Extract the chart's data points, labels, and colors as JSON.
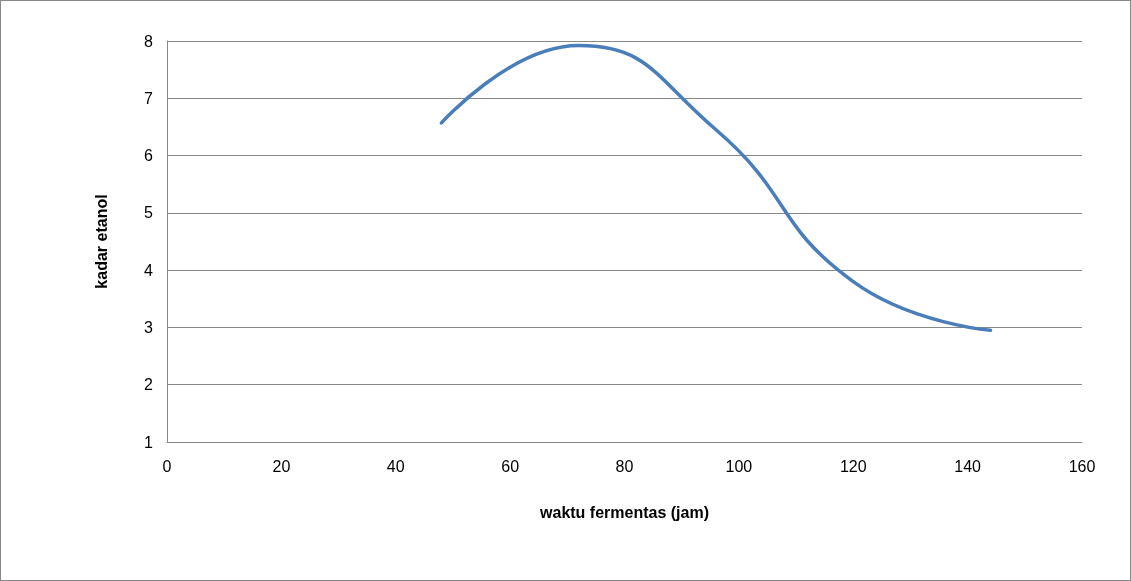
{
  "chart_data": {
    "type": "line",
    "xlabel": "waktu fermentas (jam)",
    "ylabel": "kadar etanol",
    "x": [
      48,
      72,
      96,
      120,
      144
    ],
    "series": [
      {
        "color": "#4a7ebb",
        "values": [
          6.57,
          7.92,
          6.45,
          3.8,
          2.95
        ]
      }
    ],
    "xlim": [
      0,
      160
    ],
    "xticks": [
      0,
      20,
      40,
      60,
      80,
      100,
      120,
      140,
      160
    ],
    "ylim": [
      1,
      8
    ],
    "yticks": [
      1,
      2,
      3,
      4,
      5,
      6,
      7,
      8
    ],
    "grid": "y",
    "marker": "none",
    "line_style": "solid"
  }
}
